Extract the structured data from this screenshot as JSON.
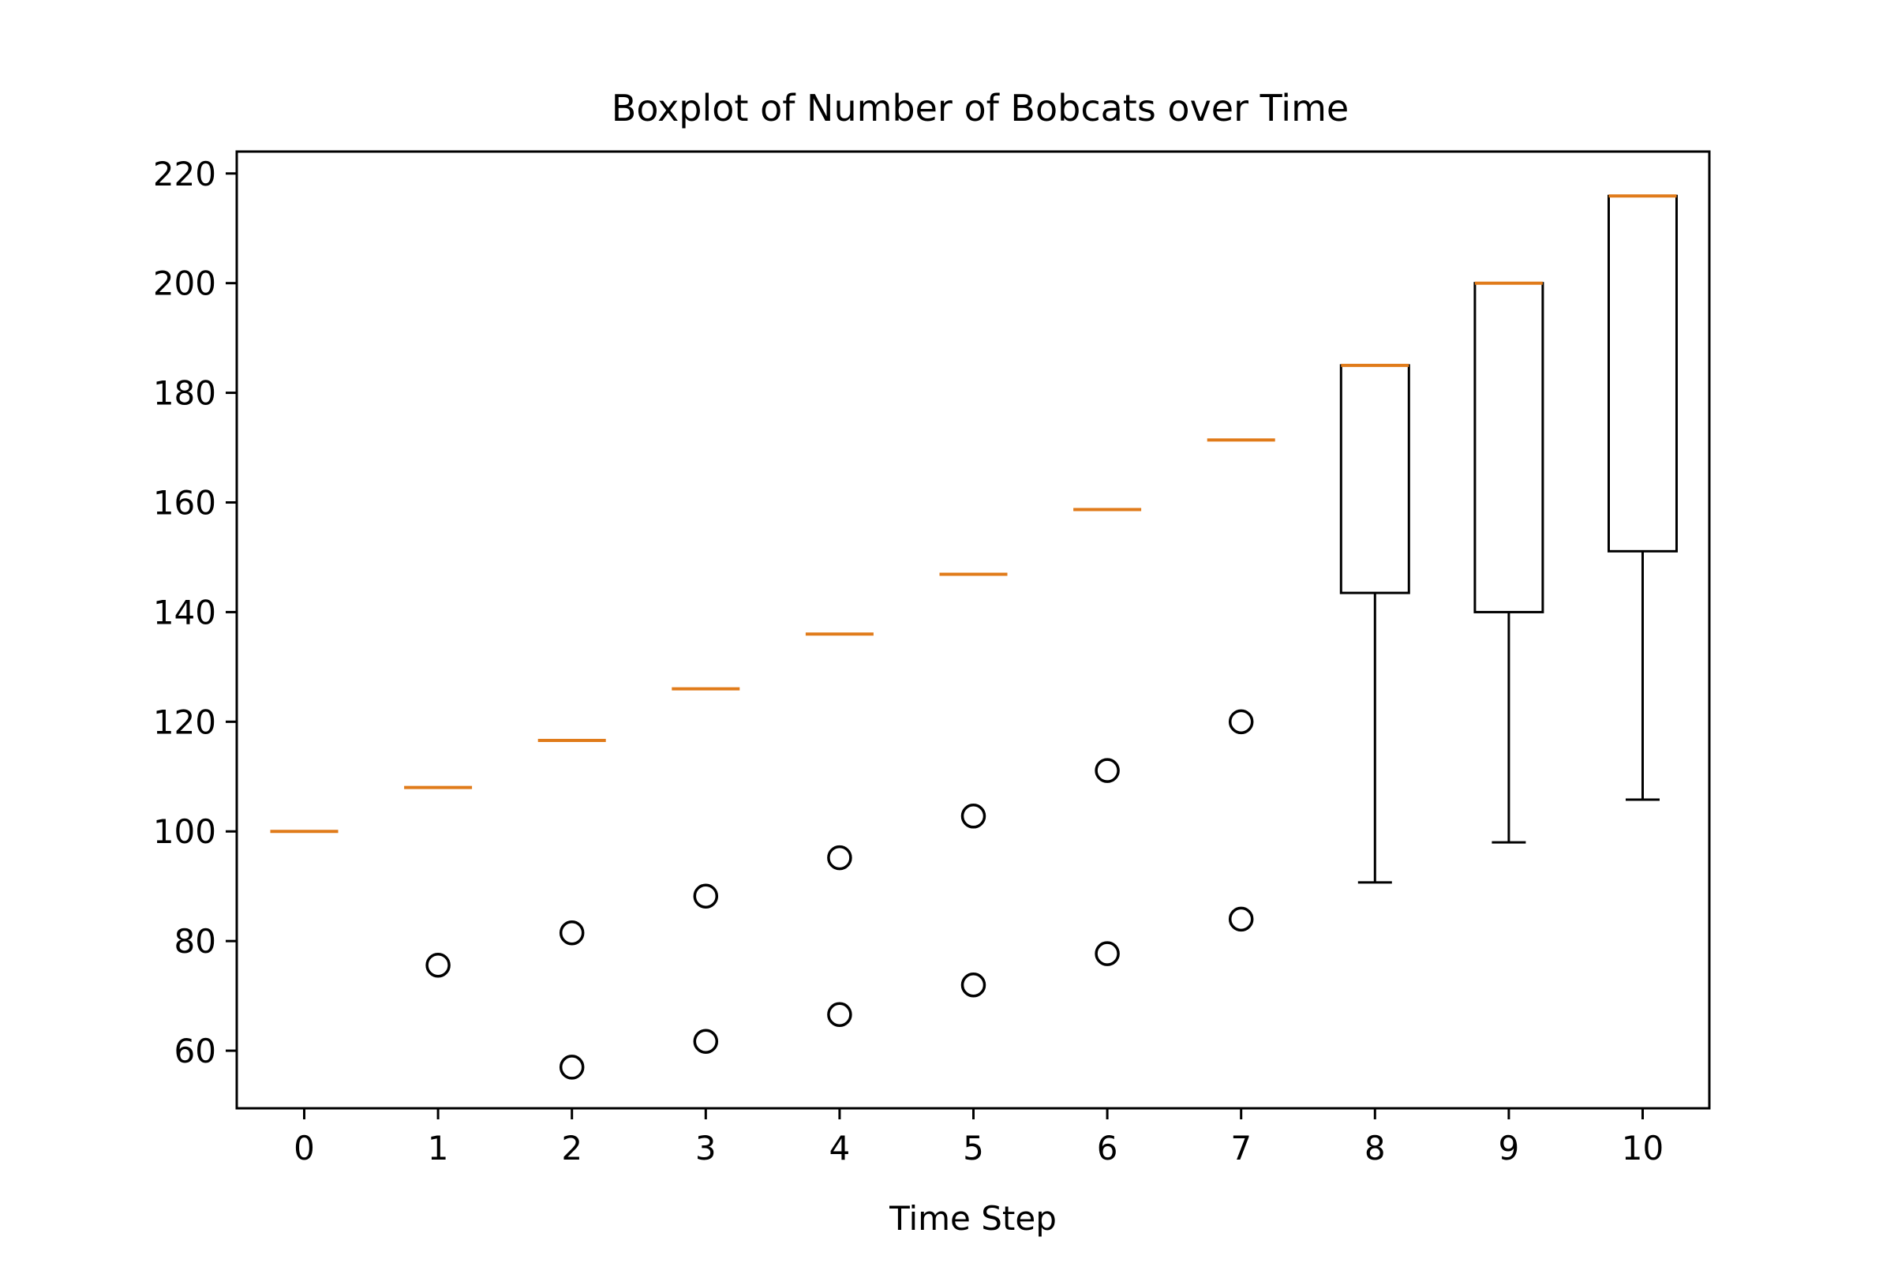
{
  "chart_data": {
    "type": "box",
    "title": "Boxplot of Number of Bobcats over Time",
    "xlabel": "Time Step",
    "ylabel": "",
    "ylim": [
      49.5,
      224
    ],
    "y_ticks": [
      60,
      80,
      100,
      120,
      140,
      160,
      180,
      200,
      220
    ],
    "categories": [
      "0",
      "1",
      "2",
      "3",
      "4",
      "5",
      "6",
      "7",
      "8",
      "9",
      "10"
    ],
    "boxes": [
      {
        "x": "0",
        "q1": 100,
        "median": 100,
        "q3": 100,
        "whisker_low": 100,
        "whisker_high": 100,
        "outliers": []
      },
      {
        "x": "1",
        "q1": 108,
        "median": 108,
        "q3": 108,
        "whisker_low": 108,
        "whisker_high": 108,
        "outliers": [
          75.6
        ]
      },
      {
        "x": "2",
        "q1": 116.6,
        "median": 116.6,
        "q3": 116.6,
        "whisker_low": 116.6,
        "whisker_high": 116.6,
        "outliers": [
          81.5,
          57
        ]
      },
      {
        "x": "3",
        "q1": 126,
        "median": 126,
        "q3": 126,
        "whisker_low": 126,
        "whisker_high": 126,
        "outliers": [
          88.2,
          61.7
        ]
      },
      {
        "x": "4",
        "q1": 136,
        "median": 136,
        "q3": 136,
        "whisker_low": 136,
        "whisker_high": 136,
        "outliers": [
          95.2,
          66.6
        ]
      },
      {
        "x": "5",
        "q1": 146.9,
        "median": 146.9,
        "q3": 146.9,
        "whisker_low": 146.9,
        "whisker_high": 146.9,
        "outliers": [
          102.8,
          72
        ]
      },
      {
        "x": "6",
        "q1": 158.7,
        "median": 158.7,
        "q3": 158.7,
        "whisker_low": 158.7,
        "whisker_high": 158.7,
        "outliers": [
          111.1,
          77.7
        ]
      },
      {
        "x": "7",
        "q1": 171.4,
        "median": 171.4,
        "q3": 171.4,
        "whisker_low": 171.4,
        "whisker_high": 171.4,
        "outliers": [
          120,
          84
        ]
      },
      {
        "x": "8",
        "q1": 143.5,
        "median": 185,
        "q3": 185,
        "whisker_low": 90.7,
        "whisker_high": 185,
        "outliers": []
      },
      {
        "x": "9",
        "q1": 140,
        "median": 200,
        "q3": 200,
        "whisker_low": 98,
        "whisker_high": 200,
        "outliers": []
      },
      {
        "x": "10",
        "q1": 151.1,
        "median": 215.9,
        "q3": 215.9,
        "whisker_low": 105.8,
        "whisker_high": 215.9,
        "outliers": []
      }
    ],
    "grid": false,
    "colors": {
      "median": "#e07b1a",
      "box": "#000000",
      "outlier": "#000000"
    }
  }
}
